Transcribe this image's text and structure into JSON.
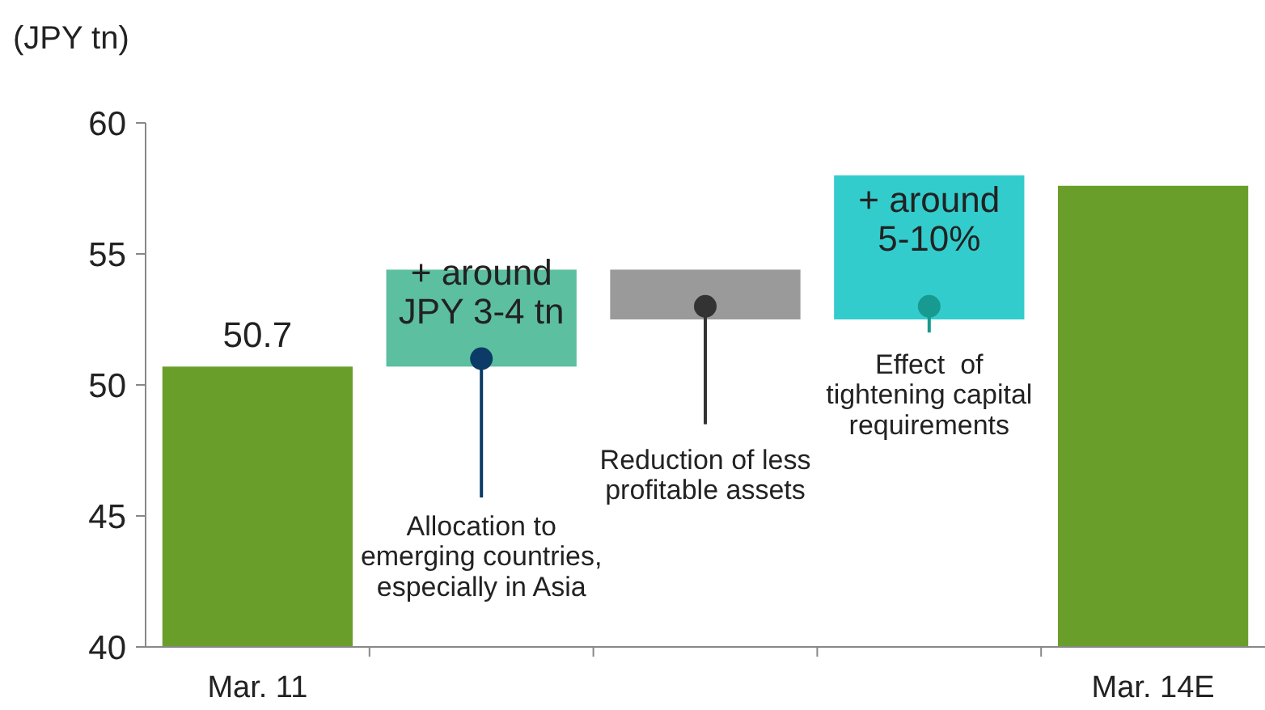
{
  "chart_data": {
    "type": "bar",
    "ylabel": "(JPY tn)",
    "categories": [
      "Mar. 11",
      null,
      null,
      null,
      "Mar. 14E"
    ],
    "values": [
      50.7,
      3.7,
      1.9,
      5.5,
      57.6
    ],
    "base": [
      null,
      50.7,
      52.5,
      52.5,
      null
    ],
    "colors": [
      "#6a9e2a",
      "#5cbf9f",
      "#9a9a9a",
      "#33cccc",
      "#6a9e2a"
    ],
    "value_labels": [
      "50.7",
      null,
      null,
      null,
      null
    ],
    "ylim": [
      40,
      60
    ],
    "yticks": [
      40,
      45,
      50,
      55,
      60
    ],
    "annotations": [
      "+ around\nJPY 3-4 tn",
      "Allocation to\nemerging countries,\nespecially in Asia",
      "Reduction of less\nprofitable assets",
      "+ around\n5-10%",
      "Effect  of\ntightening capital\nrequirements"
    ]
  }
}
